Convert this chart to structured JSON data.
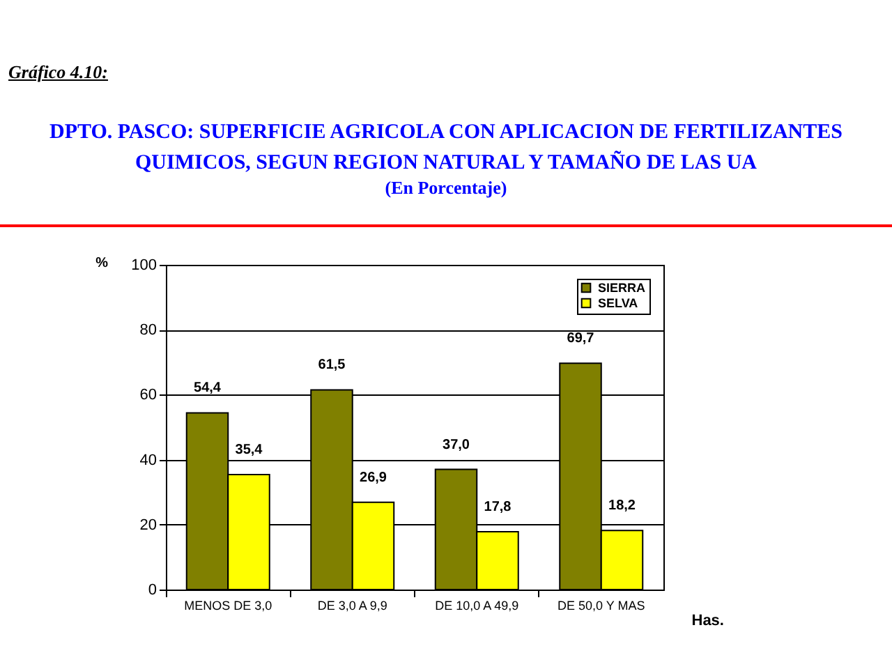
{
  "chart_data": {
    "type": "bar",
    "title": "DPTO. PASCO: SUPERFICIE AGRICOLA CON APLICACION DE FERTILIZANTES QUIMICOS, SEGUN REGION NATURAL Y TAMAÑO DE LAS UA",
    "subtitle": "(En Porcentaje)",
    "annotations": [
      "Gráfico 4.10:"
    ],
    "xlabel": "Has.",
    "ylabel": "%",
    "categories": [
      "MENOS DE 3,0",
      "DE 3,0 A 9,9",
      "DE 10,0 A 49,9",
      "DE 50,0 Y MAS"
    ],
    "series": [
      {
        "name": "SIERRA",
        "color": "#808000",
        "values": [
          54.4,
          61.5,
          37.0,
          69.7
        ],
        "value_labels": [
          "54,4",
          "61,5",
          "37,0",
          "69,7"
        ]
      },
      {
        "name": "SELVA",
        "color": "#ffff00",
        "values": [
          35.4,
          26.9,
          17.8,
          18.2
        ],
        "value_labels": [
          "35,4",
          "26,9",
          "17,8",
          "18,2"
        ]
      }
    ],
    "ylim": [
      0,
      100
    ],
    "yticks": [
      0,
      20,
      40,
      60,
      80,
      100
    ],
    "grid": "y",
    "legend": "top right"
  }
}
